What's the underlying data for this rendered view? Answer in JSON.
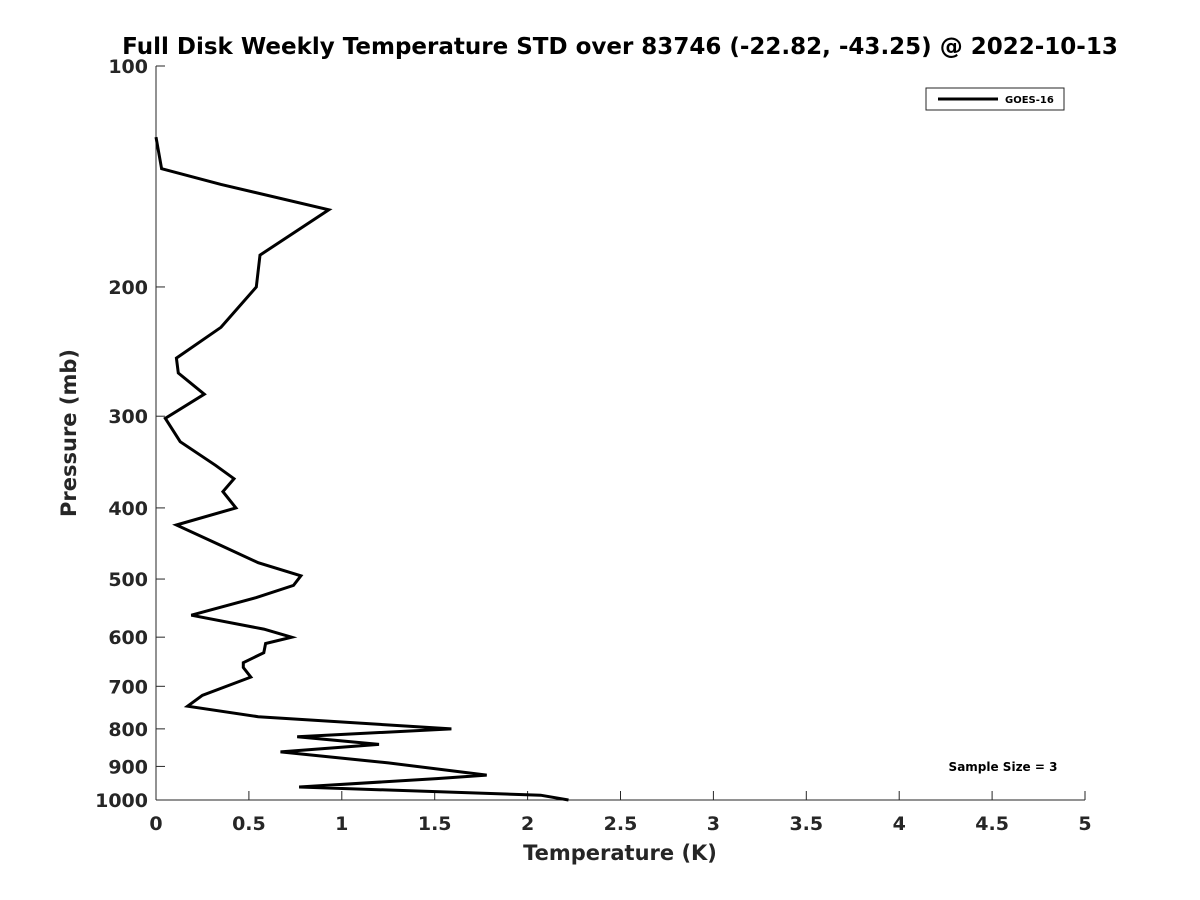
{
  "chart_data": {
    "type": "line",
    "title": "Full Disk Weekly Temperature STD over 83746 (-22.82, -43.25) @ 2022-10-13",
    "xlabel": "Temperature (K)",
    "ylabel": "Pressure (mb)",
    "xlim": [
      0,
      5
    ],
    "ylim": [
      1000,
      100
    ],
    "y_scale": "log",
    "y_reversed": true,
    "xticks": [
      0,
      0.5,
      1,
      1.5,
      2,
      2.5,
      3,
      3.5,
      4,
      4.5,
      5
    ],
    "xtick_labels": [
      "0",
      "0.5",
      "1",
      "1.5",
      "2",
      "2.5",
      "3",
      "3.5",
      "4",
      "4.5",
      "5"
    ],
    "yticks": [
      100,
      200,
      300,
      400,
      500,
      600,
      700,
      800,
      900,
      1000
    ],
    "ytick_labels": [
      "100",
      "200",
      "300",
      "400",
      "500",
      "600",
      "700",
      "800",
      "900",
      "1000"
    ],
    "grid": false,
    "legend_position": "top-right",
    "series": [
      {
        "name": "GOES-16",
        "color": "#000000",
        "points": [
          [
            0.0,
            125
          ],
          [
            0.03,
            138
          ],
          [
            0.35,
            145
          ],
          [
            0.93,
            157
          ],
          [
            0.56,
            181
          ],
          [
            0.54,
            200
          ],
          [
            0.35,
            227
          ],
          [
            0.11,
            250
          ],
          [
            0.12,
            262
          ],
          [
            0.26,
            280
          ],
          [
            0.05,
            302
          ],
          [
            0.13,
            325
          ],
          [
            0.32,
            350
          ],
          [
            0.42,
            365
          ],
          [
            0.36,
            380
          ],
          [
            0.43,
            400
          ],
          [
            0.11,
            422
          ],
          [
            0.35,
            450
          ],
          [
            0.55,
            475
          ],
          [
            0.78,
            495
          ],
          [
            0.74,
            510
          ],
          [
            0.54,
            530
          ],
          [
            0.19,
            560
          ],
          [
            0.58,
            585
          ],
          [
            0.73,
            600
          ],
          [
            0.59,
            612
          ],
          [
            0.58,
            630
          ],
          [
            0.47,
            650
          ],
          [
            0.47,
            660
          ],
          [
            0.51,
            680
          ],
          [
            0.25,
            720
          ],
          [
            0.17,
            745
          ],
          [
            0.55,
            770
          ],
          [
            1.59,
            800
          ],
          [
            0.76,
            820
          ],
          [
            1.2,
            840
          ],
          [
            0.67,
            860
          ],
          [
            1.25,
            890
          ],
          [
            1.78,
            925
          ],
          [
            1.51,
            935
          ],
          [
            0.77,
            960
          ],
          [
            2.07,
            985
          ],
          [
            2.22,
            1000
          ]
        ]
      }
    ],
    "annotations": [
      "Sample Size = 3"
    ]
  }
}
